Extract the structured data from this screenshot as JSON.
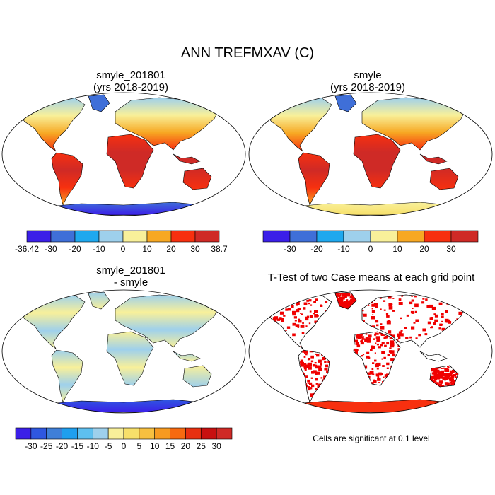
{
  "figure": {
    "title": "ANN TREFMXAV (C)",
    "footnote": "Cells are significant at 0.1 level"
  },
  "panels": [
    {
      "id": "p1",
      "title_line1": "smyle_201801",
      "title_line2": "(yrs 2018-2019)",
      "colorbar": {
        "colors": [
          "#3b1fe8",
          "#3f6fd8",
          "#1fa8ee",
          "#9ed0ec",
          "#f8f09a",
          "#f7a823",
          "#f7300f",
          "#cf2a26"
        ],
        "labels": [
          "-36.42",
          "-30",
          "-20",
          "-10",
          "0",
          "10",
          "20",
          "30",
          "38.7"
        ],
        "label_at_edges": true
      }
    },
    {
      "id": "p2",
      "title_line1": "smyle",
      "title_line2": "(yrs 2018-2019)",
      "colorbar": {
        "colors": [
          "#3b1fe8",
          "#3f6fd8",
          "#1fa8ee",
          "#9ed0ec",
          "#f8f09a",
          "#f7a823",
          "#f7300f",
          "#cf2a26"
        ],
        "labels": [
          "-30",
          "-20",
          "-10",
          "0",
          "10",
          "20",
          "30"
        ],
        "label_at_edges": false
      }
    },
    {
      "id": "p3",
      "title_line1": "smyle_201801",
      "title_line2": "- smyle",
      "colorbar": {
        "colors": [
          "#3b1fe8",
          "#2f57e0",
          "#3f7fd8",
          "#1f9fee",
          "#5ec0f0",
          "#9ed0ec",
          "#f8f09a",
          "#f7e06a",
          "#f7c040",
          "#f79a20",
          "#f76a10",
          "#e83010",
          "#c81010",
          "#cf2a26"
        ],
        "labels": [
          "-30",
          "-25",
          "-20",
          "-15",
          "-10",
          "-5",
          "0",
          "5",
          "10",
          "15",
          "20",
          "25",
          "30"
        ],
        "label_at_edges": false
      }
    },
    {
      "id": "p4",
      "title_line1": "T-Test of two Case means at each grid point"
    }
  ],
  "map_colors": {
    "antarctica_p1": "#3f6fd8",
    "antarctica_p2": "#f8f09a",
    "antarctica_p3": "#3b1fe8",
    "antarctica_p4": "#f7300f",
    "significant": "#f00000"
  }
}
